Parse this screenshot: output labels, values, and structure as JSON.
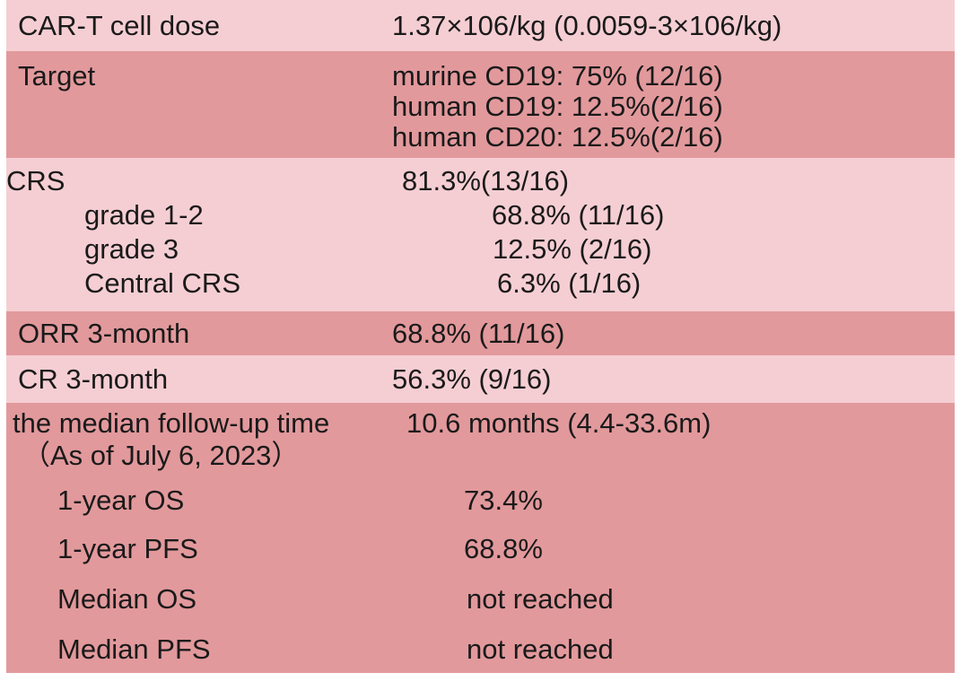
{
  "table": {
    "rows": [
      {
        "label": "CAR-T cell dose",
        "value": "1.37×106/kg (0.0059-3×106/kg)"
      },
      {
        "label": "Target",
        "values": [
          "murine CD19: 75% (12/16)",
          "human CD19: 12.5%(2/16)",
          "human CD20: 12.5%(2/16)"
        ]
      },
      {
        "label": "CRS",
        "value": "81.3%(13/16)",
        "sub_rows": [
          {
            "label": "grade 1-2",
            "value": "68.8% (11/16)"
          },
          {
            "label": "grade 3",
            "value": "12.5% (2/16)"
          },
          {
            "label": "Central CRS",
            "value": "6.3% (1/16)"
          }
        ]
      },
      {
        "label": "ORR 3-month",
        "value": "68.8% (11/16)"
      },
      {
        "label": "CR 3-month",
        "value": "56.3% (9/16)"
      },
      {
        "label": "the median follow-up time",
        "label_note": "（As of July 6, 2023）",
        "value": "10.6 months (4.4-33.6m)",
        "sub_rows": [
          {
            "label": "1-year OS",
            "value": "73.4%"
          },
          {
            "label": "1-year PFS",
            "value": "68.8%"
          },
          {
            "label": "Median OS",
            "value": "not reached"
          },
          {
            "label": "Median PFS",
            "value": "not reached"
          }
        ]
      }
    ],
    "colors": {
      "row_light": "#f5ced3",
      "row_dark": "#e2999c",
      "text": "#1a1a1a",
      "background": "#ffffff"
    }
  }
}
